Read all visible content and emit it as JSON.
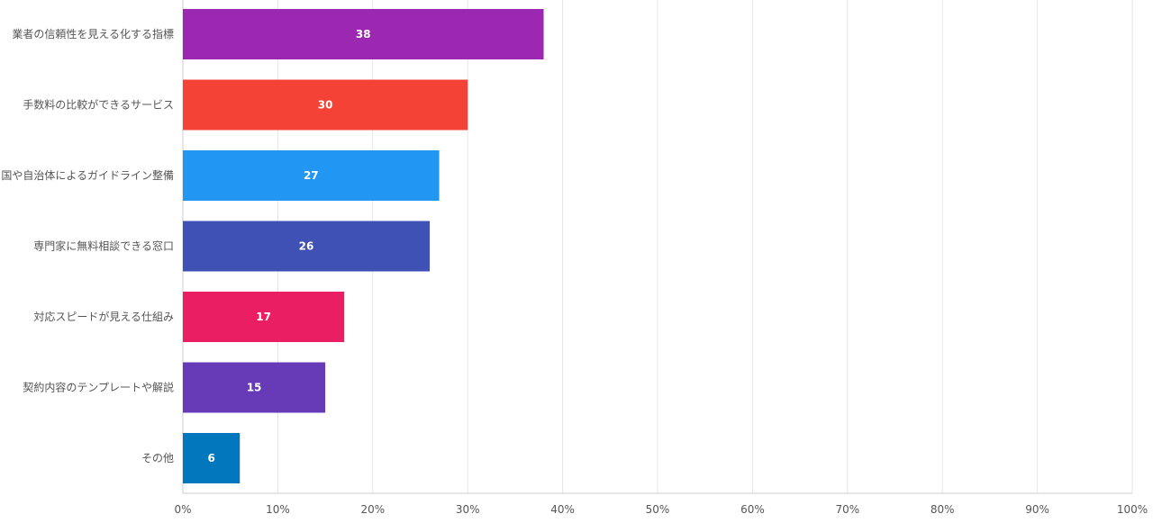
{
  "chart_data": {
    "type": "bar",
    "orientation": "horizontal",
    "categories": [
      "業者の信頼性を見える化する指標",
      "手数料の比較ができるサービス",
      "国や自治体によるガイドライン整備",
      "専門家に無料相談できる窓口",
      "対応スピードが見える仕組み",
      "契約内容のテンプレートや解説",
      "その他"
    ],
    "values": [
      38,
      30,
      27,
      26,
      17,
      15,
      6
    ],
    "colors": [
      "#9c27b0",
      "#f44336",
      "#2196f3",
      "#3f51b5",
      "#e91e63",
      "#673ab7",
      "#0277bd"
    ],
    "value_labels": [
      "38",
      "30",
      "27",
      "26",
      "17",
      "15",
      "6"
    ],
    "xlim": [
      0,
      100
    ],
    "x_ticks": [
      "0%",
      "10%",
      "20%",
      "30%",
      "40%",
      "50%",
      "60%",
      "70%",
      "80%",
      "90%",
      "100%"
    ],
    "grid": true,
    "legend": "none",
    "title": "",
    "xlabel": "",
    "ylabel": ""
  }
}
